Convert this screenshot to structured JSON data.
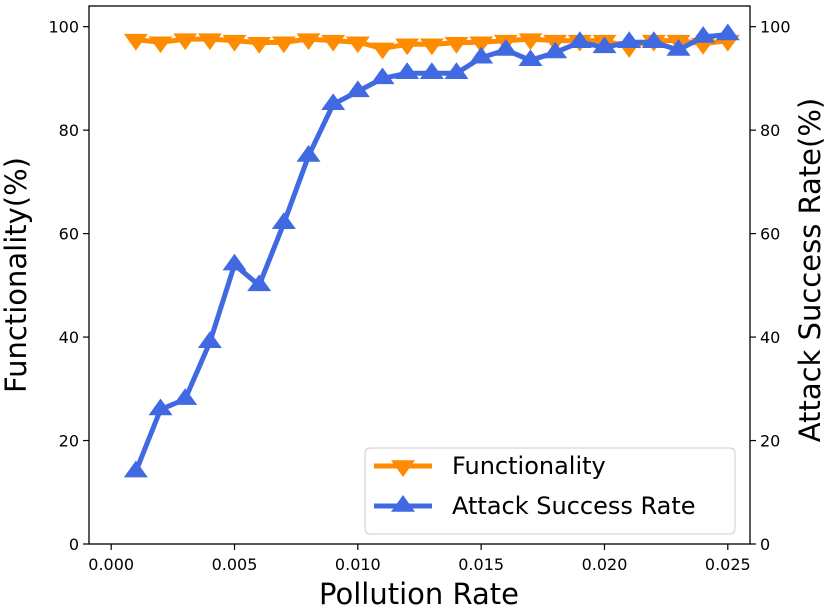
{
  "chart_data": {
    "type": "line",
    "xlabel": "Pollution Rate",
    "ylabel_left": "Functionality(%)",
    "ylabel_right": "Attack Success Rate(%)",
    "xlim": [
      -0.0009,
      0.0259
    ],
    "ylim": [
      0,
      104
    ],
    "x_ticks": [
      "0.000",
      "0.005",
      "0.010",
      "0.015",
      "0.020",
      "0.025"
    ],
    "y_ticks": [
      "0",
      "20",
      "40",
      "60",
      "80",
      "100"
    ],
    "grid": false,
    "legend_position": "bottom-right",
    "x": [
      0.001,
      0.002,
      0.003,
      0.004,
      0.005,
      0.006,
      0.007,
      0.008,
      0.009,
      0.01,
      0.011,
      0.012,
      0.013,
      0.014,
      0.015,
      0.016,
      0.017,
      0.018,
      0.019,
      0.02,
      0.021,
      0.022,
      0.023,
      0.024,
      0.025
    ],
    "series": [
      {
        "name": "Functionality",
        "axis": "left",
        "color": "#ff8c00",
        "marker": "triangle-down",
        "values": [
          97.5,
          97.0,
          97.6,
          97.6,
          97.3,
          96.9,
          97.0,
          97.6,
          97.3,
          97.0,
          95.8,
          96.6,
          96.6,
          96.9,
          97.0,
          97.3,
          97.6,
          97.3,
          97.3,
          97.3,
          96.1,
          97.3,
          97.3,
          96.7,
          97.3
        ]
      },
      {
        "name": "Attack Success Rate",
        "axis": "right",
        "color": "#4169e1",
        "marker": "triangle-up",
        "values": [
          14,
          26,
          28,
          39,
          54,
          50,
          62,
          75,
          85,
          87.5,
          90,
          91,
          91,
          91,
          94,
          95.5,
          93.5,
          95,
          97,
          96,
          97,
          97,
          95.5,
          98,
          98.5
        ]
      }
    ]
  }
}
